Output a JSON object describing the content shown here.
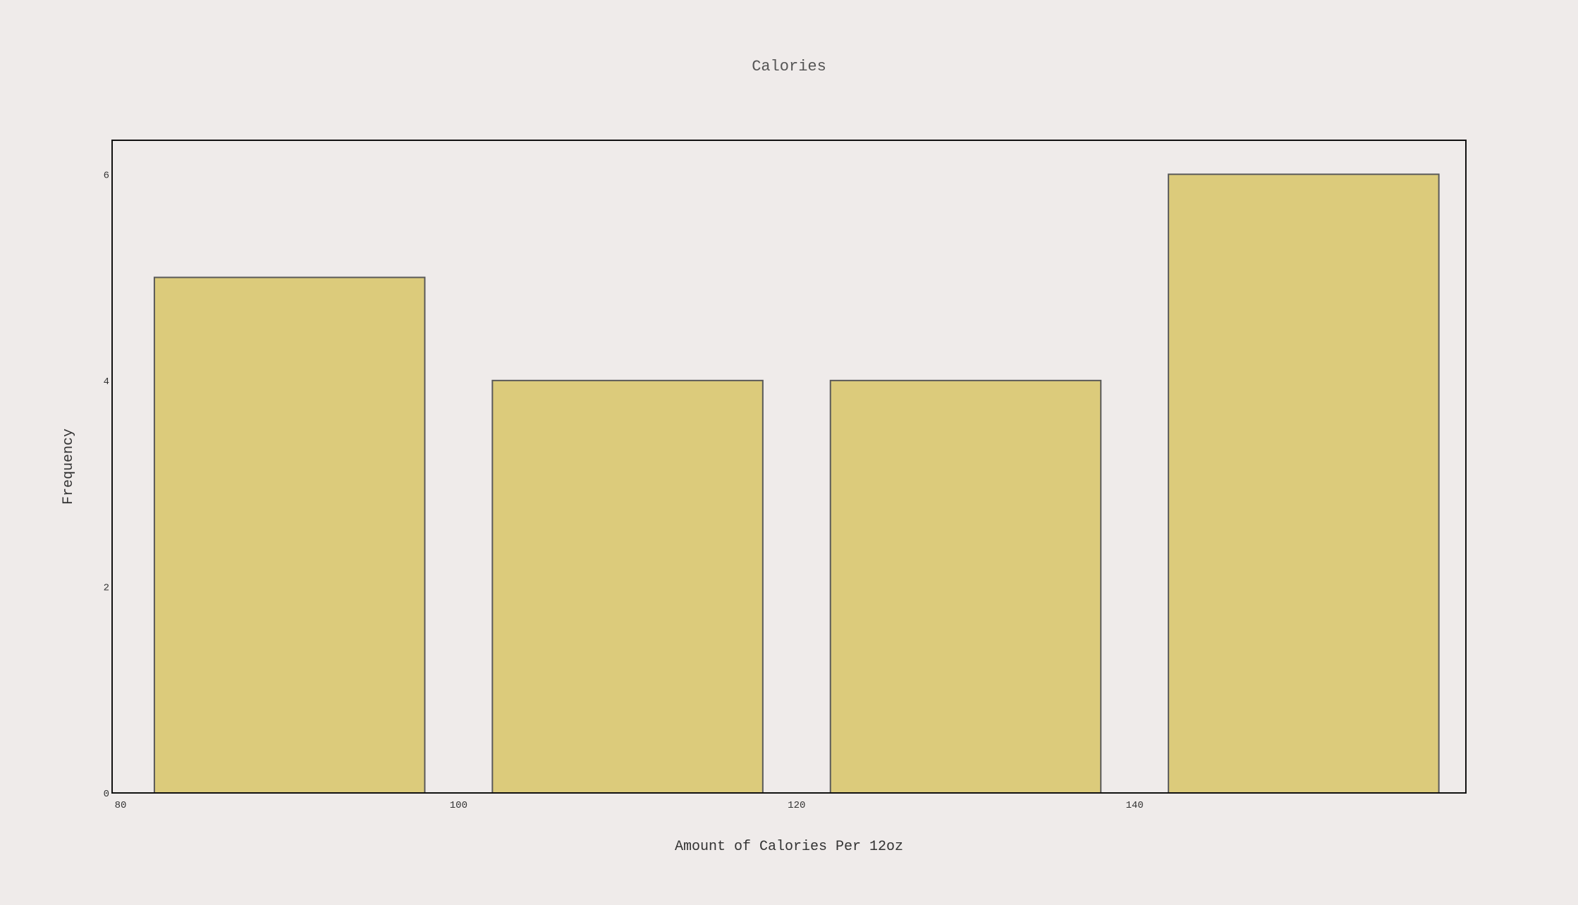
{
  "chart_data": {
    "type": "bar",
    "title": "Calories",
    "xlabel": "Amount of Calories Per 12oz",
    "ylabel": "Frequency",
    "bins": [
      {
        "start": 82,
        "end": 98,
        "value": 5
      },
      {
        "start": 102,
        "end": 118,
        "value": 4
      },
      {
        "start": 122,
        "end": 138,
        "value": 4
      },
      {
        "start": 142,
        "end": 158,
        "value": 6
      }
    ],
    "xlim": [
      79.5,
      159.6
    ],
    "ylim": [
      0,
      6.33
    ],
    "xticks": [
      {
        "value": 80,
        "label": "80"
      },
      {
        "value": 100,
        "label": "100"
      },
      {
        "value": 120,
        "label": "120"
      },
      {
        "value": 140,
        "label": "140"
      }
    ],
    "yticks": [
      {
        "value": 0,
        "label": "0"
      },
      {
        "value": 2,
        "label": "2"
      },
      {
        "value": 4,
        "label": "4"
      },
      {
        "value": 6,
        "label": "6"
      }
    ],
    "grid": false,
    "legend": "none",
    "colors": {
      "background": "#efebea",
      "bar_fill": "#dccb7b",
      "bar_stroke": "#5a5a5a",
      "frame": "#111111"
    }
  }
}
